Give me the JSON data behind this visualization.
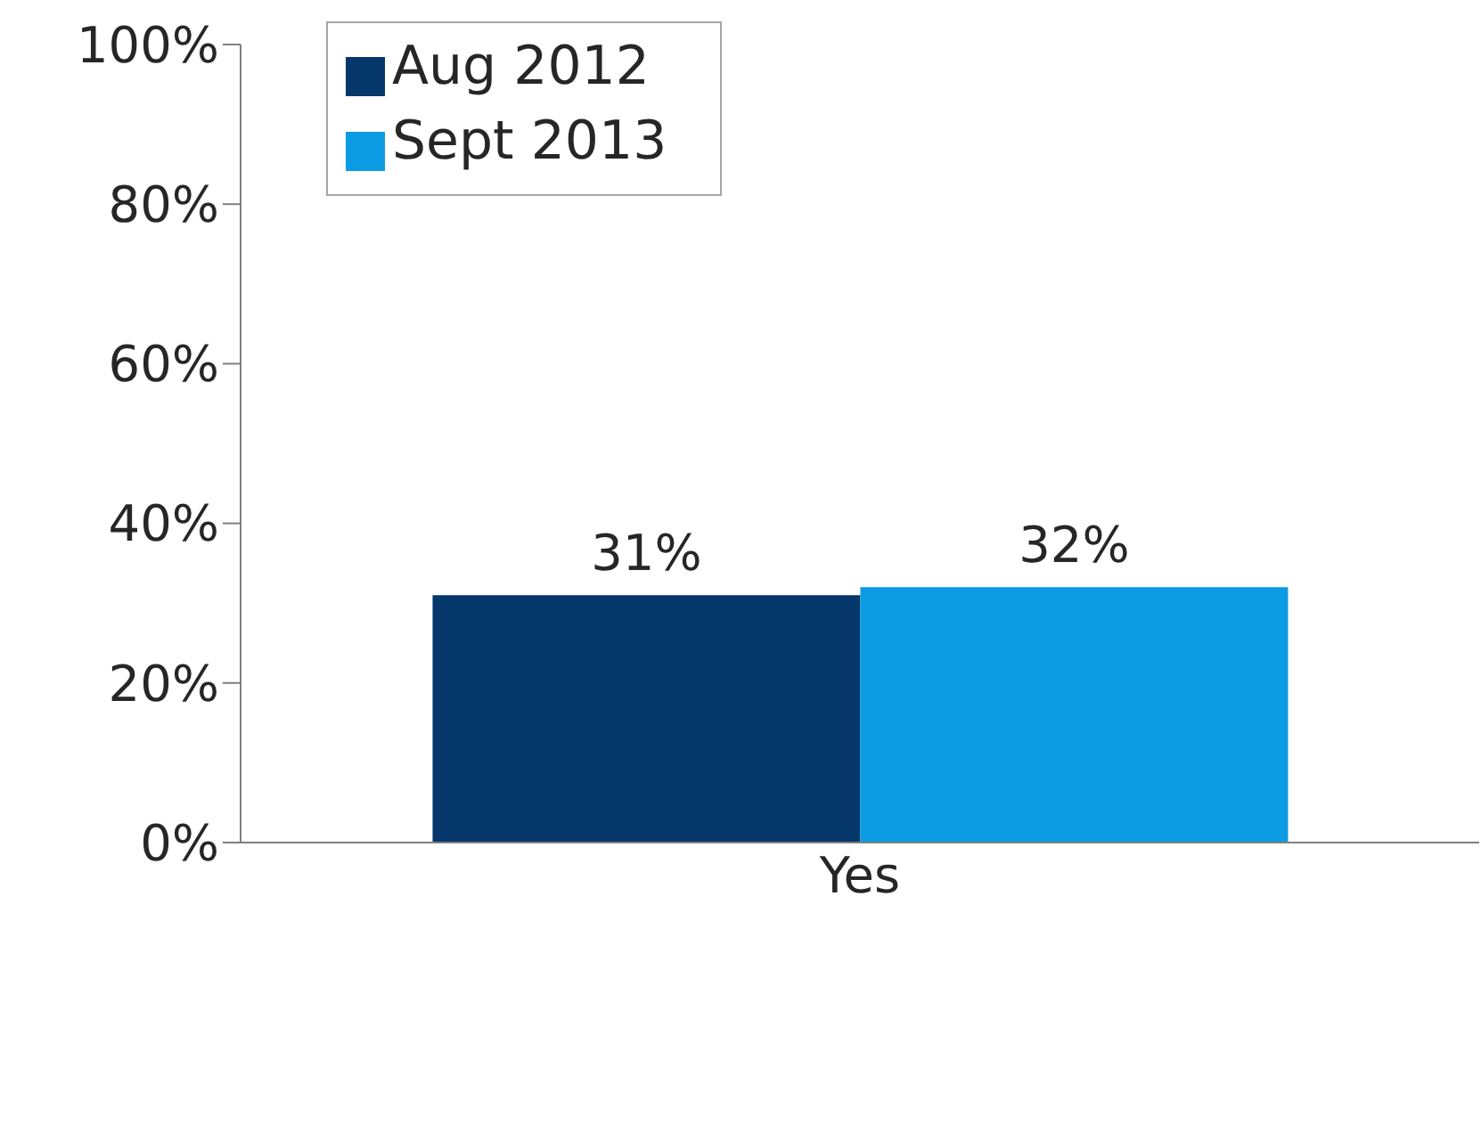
{
  "chart_data": {
    "type": "bar",
    "categories": [
      "Yes"
    ],
    "series": [
      {
        "name": "Aug 2012",
        "color": "#06376b",
        "values": [
          31
        ],
        "value_labels": [
          "31%"
        ]
      },
      {
        "name": "Sept 2013",
        "color": "#0a9be3",
        "values": [
          32
        ],
        "value_labels": [
          "32%"
        ]
      }
    ],
    "ylim": [
      0,
      100
    ],
    "yticks": [
      {
        "value": 0,
        "label": "0%"
      },
      {
        "value": 20,
        "label": "20%"
      },
      {
        "value": 40,
        "label": "40%"
      },
      {
        "value": 60,
        "label": "60%"
      },
      {
        "value": 80,
        "label": "80%"
      },
      {
        "value": 100,
        "label": "100%"
      }
    ],
    "grid": false,
    "legend": "top left"
  }
}
